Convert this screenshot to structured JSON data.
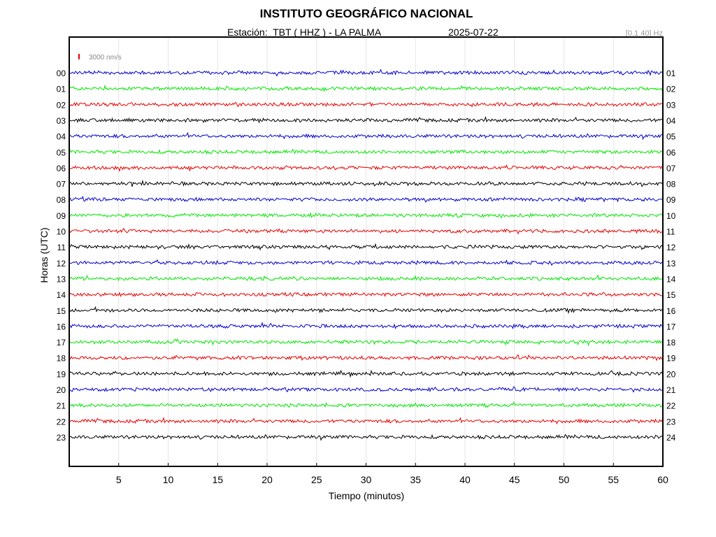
{
  "header": {
    "title": "INSTITUTO GEOGRÁFICO NACIONAL",
    "station_line": "Estación:  TBT ( HHZ ) - LA PALMA",
    "date": "2025-07-22",
    "filter": "[0.1 40] Hz"
  },
  "chart_data": {
    "type": "line",
    "xlabel": "Tiempo (minutos)",
    "ylabel": "Horas (UTC)",
    "xlim": [
      0,
      60
    ],
    "xticks": [
      5,
      10,
      15,
      20,
      25,
      30,
      35,
      40,
      45,
      50,
      55,
      60
    ],
    "grid": true,
    "scale_label": "3000 nm/s",
    "scale_color": "#e60000",
    "left_labels": [
      "00",
      "01",
      "02",
      "03",
      "04",
      "05",
      "06",
      "07",
      "08",
      "09",
      "10",
      "11",
      "12",
      "13",
      "14",
      "15",
      "16",
      "17",
      "18",
      "19",
      "20",
      "21",
      "22",
      "23"
    ],
    "right_labels": [
      "01",
      "02",
      "03",
      "04",
      "05",
      "06",
      "07",
      "08",
      "09",
      "10",
      "11",
      "12",
      "13",
      "14",
      "15",
      "16",
      "17",
      "18",
      "19",
      "20",
      "21",
      "22",
      "23",
      "24"
    ],
    "trace_colors": [
      "#0000cc",
      "#00e600",
      "#e60000",
      "#000000"
    ]
  }
}
